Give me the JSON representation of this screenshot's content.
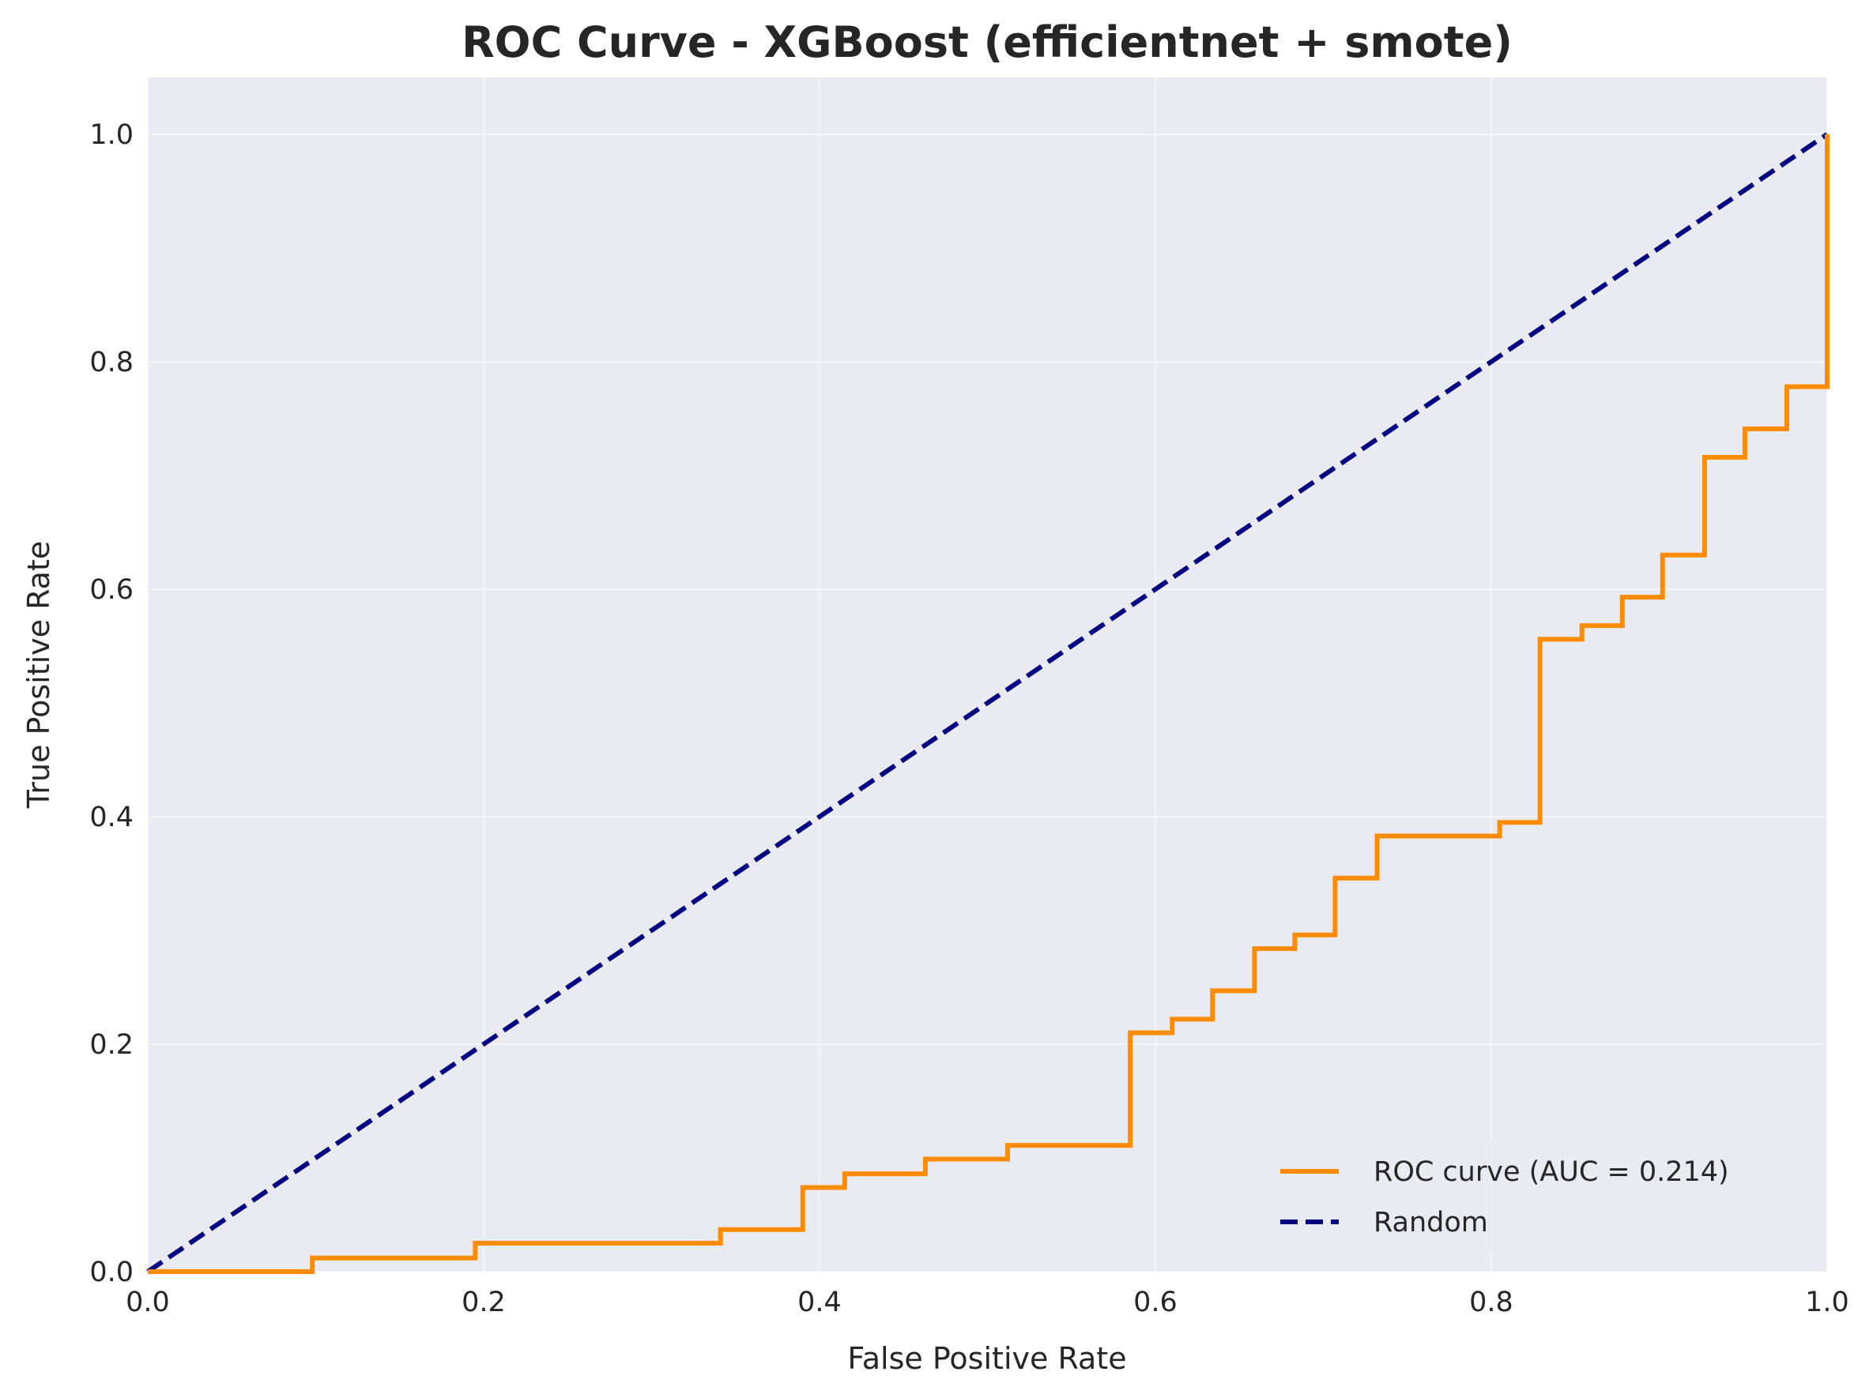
{
  "chart_data": {
    "type": "line",
    "title": "ROC Curve - XGBoost (efficientnet + smote)",
    "xlabel": "False Positive Rate",
    "ylabel": "True Positive Rate",
    "xlim": [
      0.0,
      1.0
    ],
    "ylim": [
      0.0,
      1.05
    ],
    "xticks": [
      "0.0",
      "0.2",
      "0.4",
      "0.6",
      "0.8",
      "1.0"
    ],
    "yticks": [
      "0.0",
      "0.2",
      "0.4",
      "0.6",
      "0.8",
      "1.0"
    ],
    "grid": true,
    "legend_position": "lower-right",
    "colors": {
      "plot_background": "#eaeaf2",
      "grid": "#ffffff"
    },
    "series": [
      {
        "name": "ROC curve (AUC = 0.214)",
        "color": "#ff8c00",
        "style": "solid",
        "step": true,
        "x": [
          0.0,
          0.098,
          0.098,
          0.195,
          0.195,
          0.341,
          0.341,
          0.39,
          0.39,
          0.415,
          0.415,
          0.463,
          0.463,
          0.512,
          0.512,
          0.585,
          0.585,
          0.61,
          0.61,
          0.634,
          0.634,
          0.659,
          0.659,
          0.683,
          0.683,
          0.707,
          0.707,
          0.732,
          0.732,
          0.805,
          0.805,
          0.829,
          0.829,
          0.854,
          0.854,
          0.878,
          0.878,
          0.902,
          0.902,
          0.927,
          0.927,
          0.951,
          0.951,
          0.976,
          0.976,
          1.0,
          1.0
        ],
        "y": [
          0.0,
          0.0,
          0.012,
          0.012,
          0.025,
          0.025,
          0.037,
          0.037,
          0.074,
          0.074,
          0.086,
          0.086,
          0.099,
          0.099,
          0.111,
          0.111,
          0.21,
          0.21,
          0.222,
          0.222,
          0.247,
          0.247,
          0.284,
          0.284,
          0.296,
          0.296,
          0.346,
          0.346,
          0.383,
          0.383,
          0.395,
          0.395,
          0.556,
          0.556,
          0.568,
          0.568,
          0.593,
          0.593,
          0.63,
          0.63,
          0.716,
          0.716,
          0.741,
          0.741,
          0.778,
          0.778,
          1.0
        ]
      },
      {
        "name": "Random",
        "color": "#000080",
        "style": "dashed",
        "x": [
          0.0,
          1.0
        ],
        "y": [
          0.0,
          1.0
        ]
      }
    ]
  }
}
